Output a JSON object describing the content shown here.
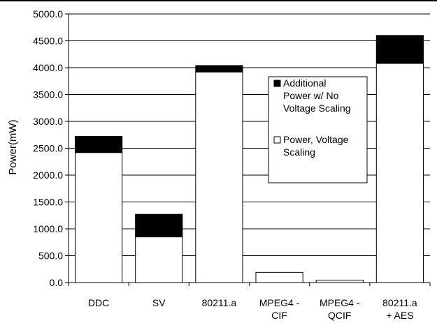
{
  "chart_data": {
    "type": "bar",
    "stacked": true,
    "ylabel": "Power(mW)",
    "xlabel": "",
    "ylim": [
      0,
      5000
    ],
    "yticks": [
      "0.0",
      "500.0",
      "1000.0",
      "1500.0",
      "2000.0",
      "2500.0",
      "3000.0",
      "3500.0",
      "4000.0",
      "4500.0",
      "5000.0"
    ],
    "grid": true,
    "legend_position": "center-right",
    "categories": [
      [
        "DDC"
      ],
      [
        "SV"
      ],
      [
        "80211.a"
      ],
      [
        "MPEG4 -",
        "CIF"
      ],
      [
        "MPEG4 -",
        "QCIF"
      ],
      [
        "80211.a",
        "+ AES"
      ]
    ],
    "series": [
      {
        "name": [
          "Power, Voltage",
          "Scaling"
        ],
        "color": "#ffffff",
        "values": [
          2420,
          850,
          3920,
          190,
          45,
          4080
        ]
      },
      {
        "name": [
          "Additional",
          "Power w/ No",
          "Voltage Scaling"
        ],
        "color": "#000000",
        "values": [
          300,
          420,
          120,
          0,
          0,
          520
        ]
      }
    ]
  }
}
